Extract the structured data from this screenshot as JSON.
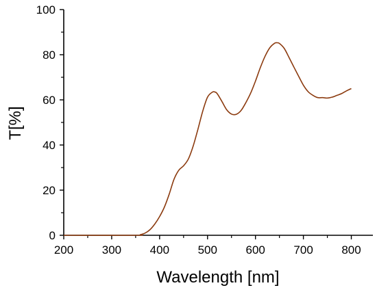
{
  "chart_data": {
    "type": "line",
    "xlabel": "Wavelength [nm]",
    "ylabel": "T[%]",
    "xlim": [
      200,
      845
    ],
    "ylim": [
      0,
      100
    ],
    "x_ticks": [
      200,
      300,
      400,
      500,
      600,
      700,
      800
    ],
    "y_ticks": [
      0,
      20,
      40,
      60,
      80,
      100
    ],
    "grid": false,
    "line_color": "#8B3A0E",
    "series": [
      {
        "x": [
          200,
          350,
          360,
          370,
          380,
          390,
          400,
          410,
          420,
          430,
          440,
          450,
          460,
          470,
          480,
          490,
          500,
          510,
          515,
          520,
          530,
          540,
          550,
          560,
          570,
          580,
          590,
          600,
          610,
          620,
          630,
          640,
          645,
          650,
          660,
          670,
          680,
          690,
          700,
          710,
          720,
          730,
          740,
          750,
          760,
          770,
          780,
          790,
          800
        ],
        "y": [
          0,
          0,
          0.3,
          1.0,
          2.5,
          5.0,
          8.3,
          12.5,
          18.2,
          24.8,
          28.8,
          30.8,
          33.8,
          39.5,
          47.0,
          55.0,
          61.2,
          63.4,
          63.5,
          62.8,
          59.3,
          55.6,
          53.7,
          53.6,
          55.3,
          58.8,
          63.0,
          68.3,
          74.2,
          79.3,
          83.1,
          85.1,
          85.3,
          85.0,
          82.8,
          78.8,
          74.6,
          70.5,
          66.5,
          63.6,
          62.0,
          61.0,
          61.0,
          60.8,
          61.2,
          62.0,
          62.8,
          64.0,
          65.0
        ]
      }
    ]
  }
}
